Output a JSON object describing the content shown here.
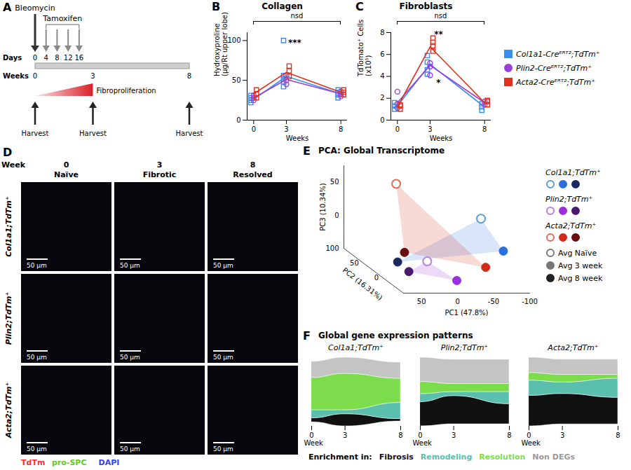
{
  "panel_A": {
    "letter": "A",
    "bleomycin": {
      "label": "Bleomycin",
      "day": 0
    },
    "tamoxifen": {
      "label": "Tamoxifen",
      "days": [
        4,
        8,
        12,
        16
      ]
    },
    "days_label": "Days",
    "days": [
      0,
      4,
      8,
      12,
      16
    ],
    "weeks_label": "Weeks",
    "weeks": [
      0,
      3,
      8
    ],
    "fibroproliferation": {
      "label": "Fibroproliferation",
      "from_week": 0,
      "to_week": 3
    },
    "harvest": {
      "label": "Harvest",
      "weeks": [
        0,
        3,
        8
      ]
    }
  },
  "chart_data": [
    {
      "letter": "B",
      "type": "line",
      "title": "Collagen",
      "xlabel": "Weeks",
      "ylabel": "Hydroxyproline (µg/Rt upper lobe)",
      "xlim": [
        -0.6,
        8.6
      ],
      "xticks": [
        0,
        3,
        8
      ],
      "ylim": [
        0,
        110
      ],
      "yticks": [
        0,
        50,
        100
      ],
      "bracket_label": "nsd",
      "annotations": [
        {
          "text": "***",
          "x": 3,
          "y": 97
        }
      ],
      "series": [
        {
          "color": "#3b8ee8",
          "marker": "square",
          "x": [
            0,
            3,
            8
          ],
          "values": [
            26,
            55,
            33
          ],
          "points": {
            "x": [
              0,
              0,
              0,
              0,
              3,
              3,
              3,
              3,
              3,
              8,
              8,
              8,
              8
            ],
            "y": [
              22,
              25,
              28,
              31,
              42,
              48,
              52,
              56,
              100,
              28,
              32,
              35,
              38
            ]
          }
        },
        {
          "color": "#9b3fd9",
          "marker": "circle",
          "x": [
            0,
            3,
            8
          ],
          "values": [
            28,
            51,
            33
          ],
          "points": {
            "x": [
              0,
              0,
              0,
              3,
              3,
              3,
              8,
              8,
              8
            ],
            "y": [
              25,
              28,
              31,
              45,
              50,
              56,
              30,
              33,
              36
            ]
          }
        },
        {
          "color": "#e0301e",
          "marker": "square",
          "x": [
            0,
            3,
            8
          ],
          "values": [
            33,
            60,
            35
          ],
          "points": {
            "x": [
              0,
              0,
              0,
              3,
              3,
              3,
              8,
              8,
              8
            ],
            "y": [
              28,
              33,
              38,
              55,
              62,
              68,
              32,
              35,
              38
            ]
          }
        }
      ]
    },
    {
      "letter": "C",
      "type": "line",
      "title": "Fibroblasts",
      "xlabel": "Weeks",
      "ylabel": "TdTomato⁺ Cells (x10⁵)",
      "xlim": [
        -0.6,
        8.6
      ],
      "xticks": [
        0,
        3,
        8
      ],
      "ylim": [
        0,
        8
      ],
      "yticks": [
        0,
        2,
        4,
        6,
        8
      ],
      "bracket_label": "nsd",
      "annotations": [
        {
          "text": "**",
          "x": 3,
          "y": 7.8
        },
        {
          "text": "*",
          "x": 3,
          "y": 3.4
        }
      ],
      "legend": "right",
      "series": [
        {
          "name": "Col1a1-Creᴱᴿᵀ²;TdTm⁺",
          "color": "#3b8ee8",
          "marker": "square",
          "x": [
            0,
            3,
            8
          ],
          "values": [
            1.3,
            5.1,
            1.2
          ],
          "points": {
            "x": [
              0,
              0,
              0,
              3,
              3,
              3,
              3,
              8,
              8,
              8
            ],
            "y": [
              1.0,
              1.3,
              1.6,
              4.2,
              4.6,
              5.3,
              5.9,
              0.9,
              1.2,
              1.5
            ]
          }
        },
        {
          "name": "Plin2-Creᴱᴿᵀ²;TdTm⁺",
          "color": "#9b3fd9",
          "marker": "circle",
          "x": [
            0,
            3,
            8
          ],
          "values": [
            1.6,
            5.0,
            1.6
          ],
          "points": {
            "x": [
              0,
              0,
              0,
              3,
              3,
              3,
              8,
              8
            ],
            "y": [
              1.1,
              1.5,
              2.6,
              4.1,
              4.9,
              5.2,
              1.4,
              1.7
            ]
          }
        },
        {
          "name": "Acta2-Creᴱᴿᵀ²;TdTm⁺",
          "color": "#e0301e",
          "marker": "square",
          "x": [
            0,
            3,
            8
          ],
          "values": [
            1.2,
            6.7,
            1.6
          ],
          "points": {
            "x": [
              0,
              0,
              0,
              3,
              3,
              3,
              3,
              8,
              8,
              8
            ],
            "y": [
              1.0,
              1.3,
              1.4,
              6.3,
              6.8,
              7.1,
              7.5,
              1.4,
              1.7,
              1.8
            ]
          }
        }
      ]
    },
    {
      "letter": "E",
      "type": "scatter3d",
      "title": "PCA: Global Transcriptome",
      "xlabel": "PC1 (47.8%)",
      "ylabel": "PC2 (16.31%)",
      "zlabel": "PC3 (10.34%)",
      "xlim": [
        -100,
        75
      ],
      "xticks": [
        -100,
        -50,
        0,
        50
      ],
      "ylim": [
        -50,
        100
      ],
      "yticks": [
        0,
        50,
        100
      ],
      "zlim": [
        -50,
        75
      ],
      "zticks": [
        0,
        50
      ],
      "marker": "circle",
      "legend": "right",
      "point_names": [
        "Avg Naïve",
        "Avg 3 week",
        "Avg 8 week"
      ],
      "series": [
        {
          "name": "Col1a1;TdTm⁺",
          "colors": [
            "#5a9be0",
            "#2a6fdb",
            "#1b2a5e"
          ],
          "x": [
            -60,
            -80,
            50
          ],
          "y": [
            0,
            -20,
            10
          ],
          "z": [
            40,
            0,
            -30
          ]
        },
        {
          "name": "Plin2;TdTm⁺",
          "colors": [
            "#b57ee0",
            "#9b30e0",
            "#4a1a6e"
          ],
          "x": [
            20,
            -10,
            40
          ],
          "y": [
            -10,
            -30,
            0
          ],
          "z": [
            -20,
            -40,
            -40
          ]
        },
        {
          "name": "Acta2;TdTm⁺",
          "colors": [
            "#e06a5a",
            "#d42a1a",
            "#6a0f0f"
          ],
          "x": [
            30,
            -50,
            35
          ],
          "y": [
            50,
            -30,
            20
          ],
          "z": [
            70,
            -20,
            -20
          ]
        }
      ]
    },
    {
      "letter": "F",
      "type": "alluvial",
      "title": "Global gene expression patterns",
      "xlabel": "Week",
      "x": [
        0,
        3,
        8
      ],
      "xlim": [
        0,
        8
      ],
      "xticks": [
        0,
        3,
        8
      ],
      "legend_title": "Enrichment in:",
      "legend": "bottom",
      "categories": [
        "Fibrosis",
        "Remodeling",
        "Resolution",
        "Non DEGs"
      ],
      "colors": [
        "#111111",
        "#5bbfae",
        "#7ddc4c",
        "#c4c4c4"
      ],
      "panels": [
        {
          "title": "Col1a1;TdTm⁺",
          "values": [
            [
              5,
              15,
              3
            ],
            [
              10,
              5,
              20
            ],
            [
              40,
              45,
              30
            ],
            [
              20,
              20,
              20
            ]
          ]
        },
        {
          "title": "Plin2;TdTm⁺",
          "values": [
            [
              30,
              35,
              25
            ],
            [
              10,
              5,
              15
            ],
            [
              15,
              10,
              10
            ],
            [
              30,
              30,
              30
            ]
          ]
        },
        {
          "title": "Acta2;TdTm⁺",
          "values": [
            [
              40,
              40,
              35
            ],
            [
              20,
              15,
              25
            ],
            [
              10,
              10,
              5
            ],
            [
              20,
              20,
              20
            ]
          ]
        }
      ]
    }
  ],
  "panel_D": {
    "letter": "D",
    "week_label": "Week",
    "columns": [
      {
        "week": "0",
        "state": "Naïve"
      },
      {
        "week": "3",
        "state": "Fibrotic"
      },
      {
        "week": "8",
        "state": "Resolved"
      }
    ],
    "rows": [
      "Col1a1;TdTm⁺",
      "Plin2;TdTm⁺",
      "Acta2;TdTm⁺"
    ],
    "scale_bar": "50 µm",
    "stains": [
      {
        "name": "TdTm",
        "color": "#ff2a2a"
      },
      {
        "name": "pro-SPC",
        "color": "#5fc82a"
      },
      {
        "name": "DAPI",
        "color": "#3040ff"
      }
    ]
  }
}
